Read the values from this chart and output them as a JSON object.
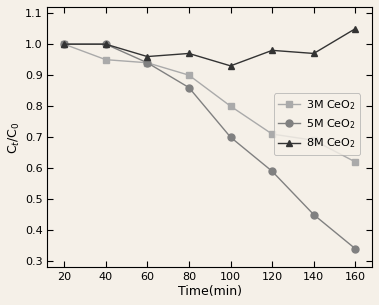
{
  "time": [
    20,
    40,
    60,
    80,
    100,
    120,
    140,
    160
  ],
  "series_3M": [
    1.0,
    0.95,
    0.94,
    0.9,
    0.8,
    0.71,
    0.69,
    0.62
  ],
  "series_5M": [
    1.0,
    1.0,
    0.94,
    0.86,
    0.7,
    0.59,
    0.45,
    0.34
  ],
  "series_8M": [
    1.0,
    1.0,
    0.96,
    0.97,
    0.93,
    0.98,
    0.97,
    1.05
  ],
  "color_3M": "#aaaaaa",
  "color_5M": "#808080",
  "color_8M": "#333333",
  "marker_3M": "s",
  "marker_5M": "o",
  "marker_8M": "^",
  "label_3M": "3M CeO$_2$",
  "label_5M": "5M CeO$_2$",
  "label_8M": "8M CeO$_2$",
  "xlabel": "Time(min)",
  "ylabel": "C$_t$/C$_0$",
  "xlim": [
    12,
    168
  ],
  "ylim": [
    0.28,
    1.12
  ],
  "xticks": [
    20,
    40,
    60,
    80,
    100,
    120,
    140,
    160
  ],
  "yticks": [
    0.3,
    0.4,
    0.5,
    0.6,
    0.7,
    0.8,
    0.9,
    1.0,
    1.1
  ],
  "linewidth": 1.0,
  "markersize": 5,
  "legend_fontsize": 8,
  "bg_color": "#f5f0e8",
  "fig_bg_color": "#f5f0e8"
}
